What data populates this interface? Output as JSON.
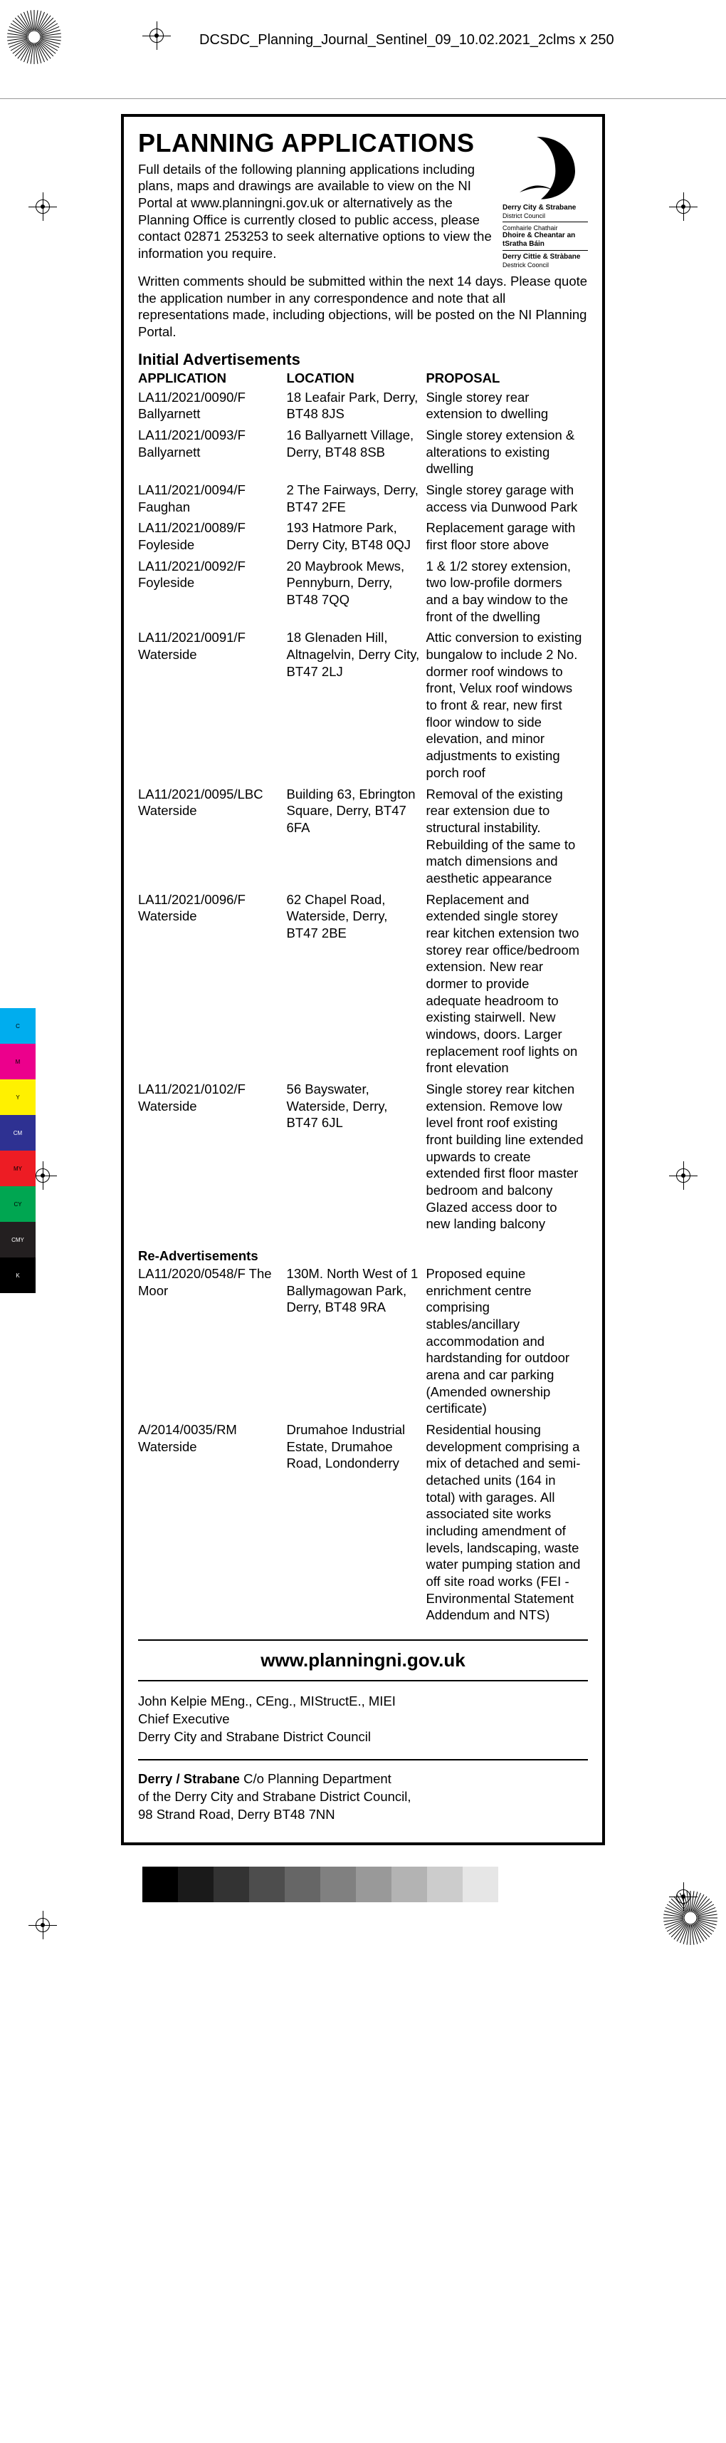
{
  "filename": "DCSDC_Planning_Journal_Sentinel_09_10.02.2021_2clms x 250",
  "heading": "PLANNING APPLICATIONS",
  "intro1": "Full details of the following planning applications including plans, maps and drawings are available to view on the NI Portal at www.planningni.gov.uk or alternatively as the Planning Office is currently closed to public access, please contact 02871 253253 to seek alternative options to view the information you require.",
  "intro2": "Written comments should be submitted within the next 14 days.  Please quote the application number in any correspondence and note that all representations made, including objections, will be posted on the NI Planning Portal.",
  "sectionTitle": "Initial Advertisements",
  "cols": {
    "a": "APPLICATION",
    "b": "LOCATION",
    "c": "PROPOSAL"
  },
  "rows": [
    {
      "a": "LA11/2021/0090/F Ballyarnett",
      "b": "18 Leafair Park, Derry, BT48 8JS",
      "c": "Single storey rear extension to dwelling"
    },
    {
      "a": "LA11/2021/0093/F Ballyarnett",
      "b": "16 Ballyarnett Village, Derry, BT48 8SB",
      "c": "Single storey extension & alterations to existing dwelling"
    },
    {
      "a": "LA11/2021/0094/F Faughan",
      "b": "2 The Fairways, Derry, BT47 2FE",
      "c": "Single storey garage with access via Dunwood Park"
    },
    {
      "a": "LA11/2021/0089/F Foyleside",
      "b": "193 Hatmore Park, Derry City, BT48 0QJ",
      "c": "Replacement garage with first floor store above"
    },
    {
      "a": "LA11/2021/0092/F Foyleside",
      "b": "20 Maybrook Mews, Pennyburn, Derry, BT48 7QQ",
      "c": "1 & 1/2 storey extension, two low-profile dormers and a bay window to the front of the dwelling"
    },
    {
      "a": "LA11/2021/0091/F Waterside",
      "b": "18 Glenaden Hill, Altnagelvin, Derry City, BT47 2LJ",
      "c": "Attic conversion to existing bungalow to include 2 No. dormer roof windows to front, Velux roof windows to front & rear, new first floor window to side elevation, and minor adjustments to existing porch roof"
    },
    {
      "a": "LA11/2021/0095/LBC Waterside",
      "b": "Building 63, Ebrington Square, Derry, BT47 6FA",
      "c": "Removal of the existing rear extension due to structural instability. Rebuilding of the same to match dimensions and aesthetic appearance"
    },
    {
      "a": "LA11/2021/0096/F Waterside",
      "b": "62 Chapel Road, Waterside, Derry, BT47 2BE",
      "c": "Replacement and extended single storey rear kitchen extension two storey rear office/bedroom extension. New rear dormer to provide adequate headroom to existing stairwell. New windows, doors. Larger replacement roof lights on front elevation"
    },
    {
      "a": "LA11/2021/0102/F Waterside",
      "b": "56 Bayswater, Waterside, Derry, BT47 6JL",
      "c": "Single storey rear kitchen extension. Remove low level front roof existing front building line extended upwards to create extended first floor master bedroom and balcony Glazed access door to new landing balcony"
    }
  ],
  "reAdTitle": "Re-Advertisements",
  "rows2": [
    {
      "a": "LA11/2020/0548/F The Moor",
      "b": "130M. North West of 1 Ballymagowan Park, Derry, BT48 9RA",
      "c": "Proposed equine enrichment centre comprising stables/ancillary accommodation and hardstanding for outdoor arena and car parking (Amended ownership certificate)"
    },
    {
      "a": "A/2014/0035/RM Waterside",
      "b": "Drumahoe Industrial Estate, Drumahoe Road, Londonderry",
      "c": "Residential housing development comprising a mix of detached and semi-detached units (164 in total) with garages. All associated site works including amendment of levels, landscaping, waste water pumping station and off site road works (FEI - Environmental Statement Addendum and NTS)"
    }
  ],
  "url": "www.planningni.gov.uk",
  "sign": {
    "name": "John Kelpie MEng., CEng., MIStructE., MIEI",
    "title": "Chief Executive",
    "org": "Derry City and Strabane District Council",
    "addr1": "Derry / Strabane",
    "addr2": " C/o Planning Department",
    "addr3": "of the Derry City and Strabane District Council,",
    "addr4": "98 Strand Road, Derry BT48 7NN"
  },
  "logo": {
    "l1": "Derry City & Strabane",
    "l1b": "District Council",
    "l2": "Comhairle Chathair",
    "l3": "Dhoire & Cheantar an tSratha Báin",
    "l4": "Derry Cittie & Stràbane",
    "l4b": "Destrick Cooncil"
  },
  "leftSwatches": [
    {
      "label": "C",
      "color": "#00adee"
    },
    {
      "label": "M",
      "color": "#ec008c"
    },
    {
      "label": "Y",
      "color": "#fff100"
    },
    {
      "label": "CM",
      "color": "#2e3192"
    },
    {
      "label": "MY",
      "color": "#ed1c24"
    },
    {
      "label": "CY",
      "color": "#00a651"
    },
    {
      "label": "CMY",
      "color": "#231f20"
    },
    {
      "label": "K",
      "color": "#000000"
    }
  ],
  "bottomSwatches": [
    "#000000",
    "#1a1a1a",
    "#333333",
    "#4d4d4d",
    "#666666",
    "#808080",
    "#999999",
    "#b3b3b3",
    "#cccccc",
    "#e6e6e6"
  ],
  "layout": {
    "noticeTop": 160,
    "bottomBarOffset": 30,
    "sunburstBottomOffset": 62,
    "regLeftBottomOffset": 92
  }
}
